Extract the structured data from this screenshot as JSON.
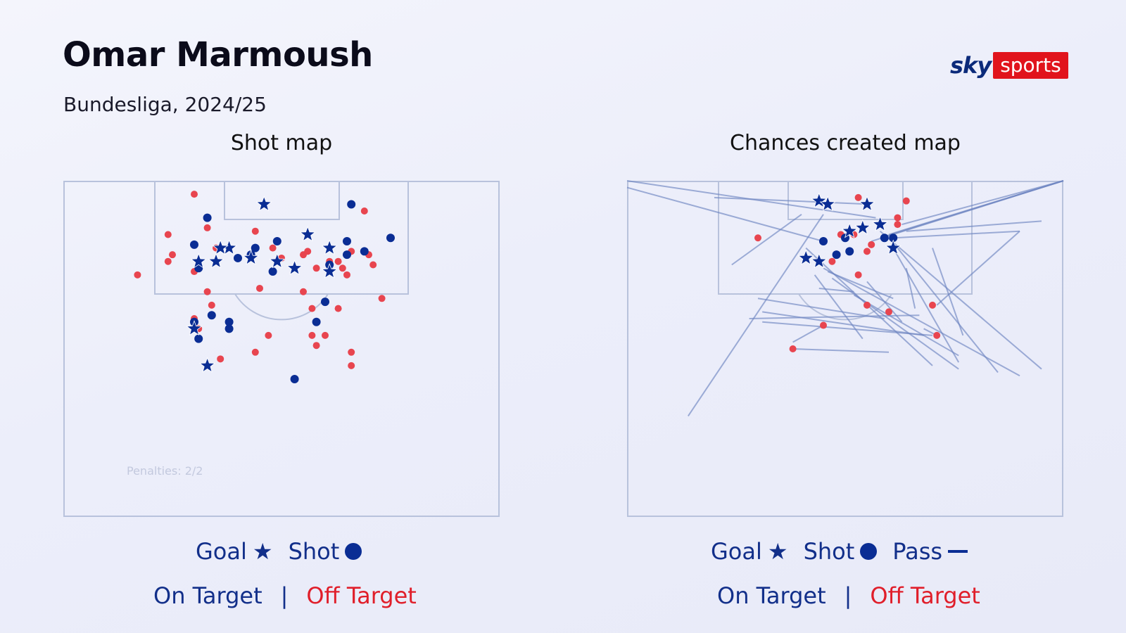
{
  "header": {
    "title": "Omar Marmoush",
    "subtitle": "Bundesliga, 2024/25",
    "logo_sky": "sky",
    "logo_sports": "sports"
  },
  "legend": {
    "goal": "Goal",
    "goal_symbol": "★",
    "shot": "Shot",
    "pass": "Pass",
    "on_target": "On Target",
    "separator": "|",
    "off_target": "Off Target"
  },
  "colors": {
    "on_target": "#0a2d94",
    "off_target": "#e8454f",
    "pitch_lines": "#b8c2dc",
    "pass_line": "#6f86c2"
  },
  "chart_data": [
    {
      "type": "scatter",
      "title": "Shot map",
      "note": "Penalties: 2/2",
      "coordinate_note": "x = 0..100 across pitch width (left to right); y = 0..100 distance down from goal line",
      "goals": [
        [
          46,
          7
        ],
        [
          56,
          16
        ],
        [
          38,
          20
        ],
        [
          61,
          20
        ],
        [
          49,
          24
        ],
        [
          43,
          23
        ],
        [
          31,
          24
        ],
        [
          53,
          26
        ],
        [
          36,
          20
        ],
        [
          35,
          24
        ],
        [
          61,
          27
        ],
        [
          30,
          44
        ],
        [
          33,
          55
        ]
      ],
      "shots_on_target": [
        [
          33,
          11
        ],
        [
          66,
          7
        ],
        [
          75,
          17
        ],
        [
          30,
          19
        ],
        [
          44,
          20
        ],
        [
          49,
          18
        ],
        [
          65,
          18
        ],
        [
          31,
          26
        ],
        [
          40,
          23
        ],
        [
          43,
          22
        ],
        [
          48,
          27
        ],
        [
          61,
          25
        ],
        [
          65,
          22
        ],
        [
          69,
          21
        ],
        [
          34,
          40
        ],
        [
          30,
          42
        ],
        [
          38,
          42
        ],
        [
          38,
          44
        ],
        [
          31,
          47
        ],
        [
          60,
          36
        ],
        [
          58,
          42
        ],
        [
          53,
          59
        ]
      ],
      "shots_off_target": [
        [
          30,
          4
        ],
        [
          69,
          9
        ],
        [
          33,
          14
        ],
        [
          24,
          16
        ],
        [
          25,
          22
        ],
        [
          24,
          24
        ],
        [
          17,
          28
        ],
        [
          30,
          27
        ],
        [
          35,
          20
        ],
        [
          44,
          15
        ],
        [
          48,
          20
        ],
        [
          50,
          23
        ],
        [
          55,
          22
        ],
        [
          56,
          21
        ],
        [
          58,
          26
        ],
        [
          61,
          24
        ],
        [
          63,
          24
        ],
        [
          64,
          26
        ],
        [
          65,
          28
        ],
        [
          66,
          21
        ],
        [
          70,
          22
        ],
        [
          71,
          25
        ],
        [
          33,
          33
        ],
        [
          45,
          32
        ],
        [
          34,
          37
        ],
        [
          55,
          33
        ],
        [
          57,
          38
        ],
        [
          63,
          38
        ],
        [
          30,
          41
        ],
        [
          31,
          44
        ],
        [
          57,
          46
        ],
        [
          60,
          46
        ],
        [
          47,
          46
        ],
        [
          58,
          49
        ],
        [
          66,
          51
        ],
        [
          36,
          53
        ],
        [
          44,
          51
        ],
        [
          66,
          55
        ],
        [
          73,
          35
        ]
      ]
    },
    {
      "type": "scatter",
      "title": "Chances created map",
      "coordinate_note": "x = 0..100 across pitch width; y = 0..100 distance down from goal line; passes from [x1,y1] to [x2,y2]",
      "goals": [
        [
          44,
          6
        ],
        [
          46,
          7
        ],
        [
          55,
          7
        ],
        [
          51,
          15
        ],
        [
          54,
          14
        ],
        [
          58,
          13
        ],
        [
          61,
          20
        ],
        [
          41,
          23
        ],
        [
          44,
          24
        ]
      ],
      "shots_on_target": [
        [
          45,
          18
        ],
        [
          50,
          17
        ],
        [
          59,
          17
        ],
        [
          61,
          17
        ],
        [
          48,
          22
        ],
        [
          51,
          21
        ]
      ],
      "shots_off_target": [
        [
          53,
          5
        ],
        [
          64,
          6
        ],
        [
          62,
          11
        ],
        [
          62,
          13
        ],
        [
          30,
          17
        ],
        [
          49,
          16
        ],
        [
          52,
          16
        ],
        [
          56,
          19
        ],
        [
          55,
          21
        ],
        [
          47,
          24
        ],
        [
          53,
          28
        ],
        [
          55,
          37
        ],
        [
          60,
          39
        ],
        [
          45,
          43
        ],
        [
          70,
          37
        ],
        [
          71,
          46
        ],
        [
          38,
          50
        ]
      ],
      "passes": [
        [
          [
            0,
            0
          ],
          [
            57,
            11
          ]
        ],
        [
          [
            100,
            0
          ],
          [
            63,
            13
          ]
        ],
        [
          [
            100,
            0
          ],
          [
            60,
            16
          ]
        ],
        [
          [
            100,
            0
          ],
          [
            58,
            17
          ]
        ],
        [
          [
            100,
            0
          ],
          [
            56,
            18
          ]
        ],
        [
          [
            20,
            5
          ],
          [
            56,
            7
          ]
        ],
        [
          [
            0,
            2
          ],
          [
            45,
            18
          ]
        ],
        [
          [
            90,
            15
          ],
          [
            61,
            17
          ]
        ],
        [
          [
            95,
            12
          ],
          [
            64,
            15
          ]
        ],
        [
          [
            40,
            10
          ],
          [
            24,
            25
          ]
        ],
        [
          [
            45,
            10
          ],
          [
            14,
            70
          ]
        ],
        [
          [
            41,
            20
          ],
          [
            70,
            55
          ]
        ],
        [
          [
            30,
            35
          ],
          [
            59,
            41
          ]
        ],
        [
          [
            31,
            39
          ],
          [
            68,
            46
          ]
        ],
        [
          [
            45,
            26
          ],
          [
            90,
            58
          ]
        ],
        [
          [
            43,
            28
          ],
          [
            54,
            47
          ]
        ],
        [
          [
            47,
            29
          ],
          [
            76,
            56
          ]
        ],
        [
          [
            52,
            34
          ],
          [
            76,
            52
          ]
        ],
        [
          [
            46,
            27
          ],
          [
            61,
            35
          ]
        ],
        [
          [
            55,
            30
          ],
          [
            63,
            42
          ]
        ],
        [
          [
            61,
            20
          ],
          [
            76,
            54
          ]
        ],
        [
          [
            62,
            20
          ],
          [
            85,
            57
          ]
        ],
        [
          [
            31,
            42
          ],
          [
            70,
            46
          ]
        ],
        [
          [
            38,
            50
          ],
          [
            60,
            51
          ]
        ],
        [
          [
            70,
            20
          ],
          [
            77,
            46
          ]
        ],
        [
          [
            90,
            15
          ],
          [
            71,
            37
          ]
        ],
        [
          [
            38,
            48
          ],
          [
            45,
            43
          ]
        ],
        [
          [
            64,
            26
          ],
          [
            66,
            38
          ]
        ],
        [
          [
            71,
            46
          ],
          [
            68,
            44
          ]
        ],
        [
          [
            28,
            41
          ],
          [
            67,
            40
          ]
        ],
        [
          [
            58,
            15
          ],
          [
            95,
            56
          ]
        ],
        [
          [
            44,
            32
          ],
          [
            52,
            33
          ]
        ]
      ]
    }
  ]
}
